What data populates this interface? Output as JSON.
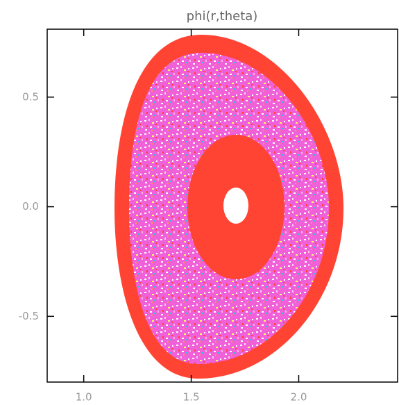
{
  "chart_data": {
    "type": "contour",
    "title": "phi(r,theta)",
    "xlim": [
      0.83,
      2.46
    ],
    "ylim": [
      -0.8,
      0.81
    ],
    "xticks": [
      {
        "value": 1.0,
        "label": "1.0"
      },
      {
        "value": 1.5,
        "label": "1.5"
      },
      {
        "value": 2.0,
        "label": "2.0"
      }
    ],
    "yticks": [
      {
        "value": -0.5,
        "label": "-0.5"
      },
      {
        "value": 0.0,
        "label": "0.0"
      },
      {
        "value": 0.5,
        "label": "0.5"
      }
    ]
  }
}
